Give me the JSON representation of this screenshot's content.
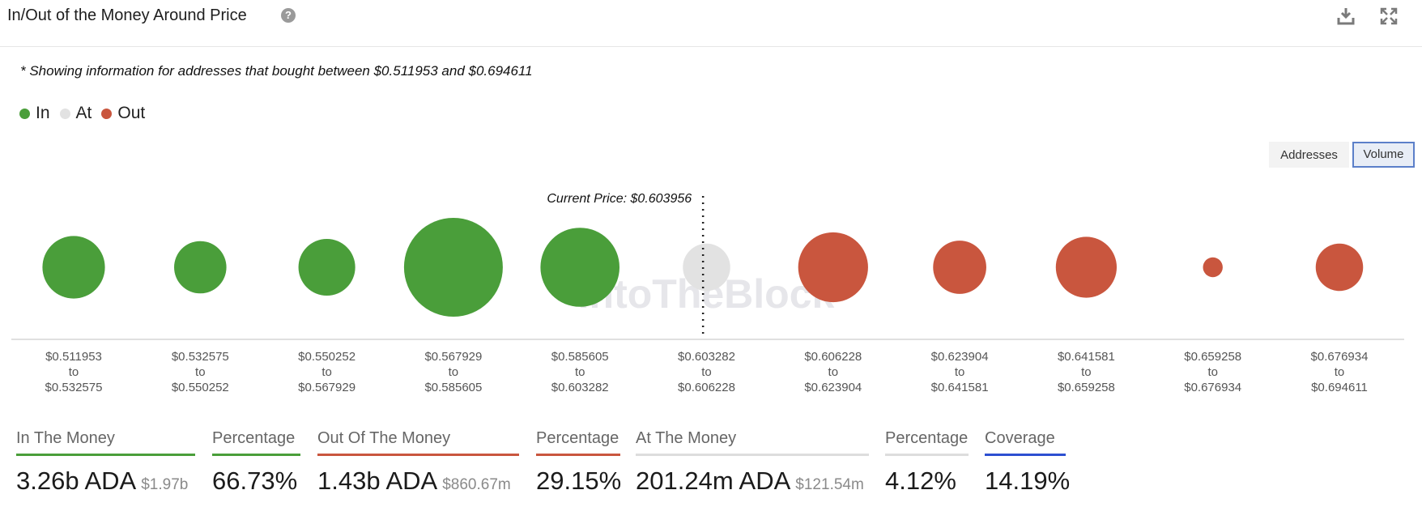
{
  "header": {
    "title": "In/Out of the Money Around Price"
  },
  "note": "* Showing information for addresses that bought between $0.511953 and $0.694611",
  "legend": [
    {
      "label": "In",
      "color": "#4a9e3a"
    },
    {
      "label": "At",
      "color": "#e2e2e2"
    },
    {
      "label": "Out",
      "color": "#c9563e"
    }
  ],
  "toggles": {
    "addresses": "Addresses",
    "volume": "Volume",
    "active": "Volume"
  },
  "chart_data": {
    "type": "bubble",
    "current_price_label": "Current Price: $0.603956",
    "current_price": 0.603956,
    "watermark": "IntoTheBlock",
    "bins": [
      {
        "from": "$0.511953",
        "to": "$0.532575",
        "status": "In",
        "volume_rel": 0.4
      },
      {
        "from": "$0.532575",
        "to": "$0.550252",
        "status": "In",
        "volume_rel": 0.28
      },
      {
        "from": "$0.550252",
        "to": "$0.567929",
        "status": "In",
        "volume_rel": 0.33
      },
      {
        "from": "$0.567929",
        "to": "$0.585605",
        "status": "In",
        "volume_rel": 1.0
      },
      {
        "from": "$0.585605",
        "to": "$0.603282",
        "status": "In",
        "volume_rel": 0.64
      },
      {
        "from": "$0.603282",
        "to": "$0.606228",
        "status": "At",
        "volume_rel": 0.23
      },
      {
        "from": "$0.606228",
        "to": "$0.623904",
        "status": "Out",
        "volume_rel": 0.5
      },
      {
        "from": "$0.623904",
        "to": "$0.641581",
        "status": "Out",
        "volume_rel": 0.29
      },
      {
        "from": "$0.641581",
        "to": "$0.659258",
        "status": "Out",
        "volume_rel": 0.38
      },
      {
        "from": "$0.659258",
        "to": "$0.676934",
        "status": "Out",
        "volume_rel": 0.04
      },
      {
        "from": "$0.676934",
        "to": "$0.694611",
        "status": "Out",
        "volume_rel": 0.23
      }
    ],
    "range_word": "to"
  },
  "stats": [
    {
      "label": "In The Money",
      "value": "3.26b ADA",
      "sub": "$1.97b",
      "color": "#4a9e3a"
    },
    {
      "label": "Percentage",
      "value": "66.73%",
      "sub": "",
      "color": "#4a9e3a"
    },
    {
      "label": "Out Of The Money",
      "value": "1.43b ADA",
      "sub": "$860.67m",
      "color": "#c9563e"
    },
    {
      "label": "Percentage",
      "value": "29.15%",
      "sub": "",
      "color": "#c9563e"
    },
    {
      "label": "At The Money",
      "value": "201.24m ADA",
      "sub": "$121.54m",
      "color": "#dddddd"
    },
    {
      "label": "Percentage",
      "value": "4.12%",
      "sub": "",
      "color": "#dddddd"
    },
    {
      "label": "Coverage",
      "value": "14.19%",
      "sub": "",
      "color": "#2d4fd1"
    }
  ]
}
